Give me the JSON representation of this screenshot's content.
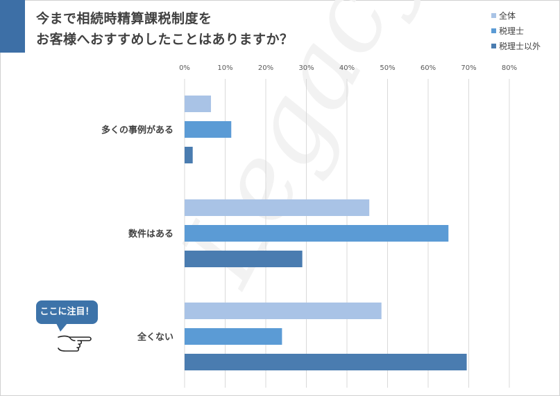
{
  "title_lines": [
    "今まで相続時精算課税制度を",
    "お客様へおすすめしたことはありますか？"
  ],
  "watermark_text": "Legacy",
  "callout_text": "ここに注目！",
  "chart_data": {
    "type": "bar",
    "orientation": "horizontal",
    "categories": [
      "多くの事例がある",
      "数件はある",
      "全くない"
    ],
    "series": [
      {
        "name": "全体",
        "color": "#a9c3e6",
        "values": [
          6.5,
          45.5,
          48.5
        ]
      },
      {
        "name": "税理士",
        "color": "#5b9bd5",
        "values": [
          11.5,
          65,
          24
        ]
      },
      {
        "name": "税理士以外",
        "color": "#4a7cb0",
        "values": [
          2,
          29,
          69.5
        ]
      }
    ],
    "xlim": [
      0,
      80
    ],
    "xticks": [
      "0%",
      "10%",
      "20%",
      "30%",
      "40%",
      "50%",
      "60%",
      "70%",
      "80%"
    ],
    "xlabel": "",
    "ylabel": "",
    "grid": true,
    "legend_position": "top-right"
  }
}
